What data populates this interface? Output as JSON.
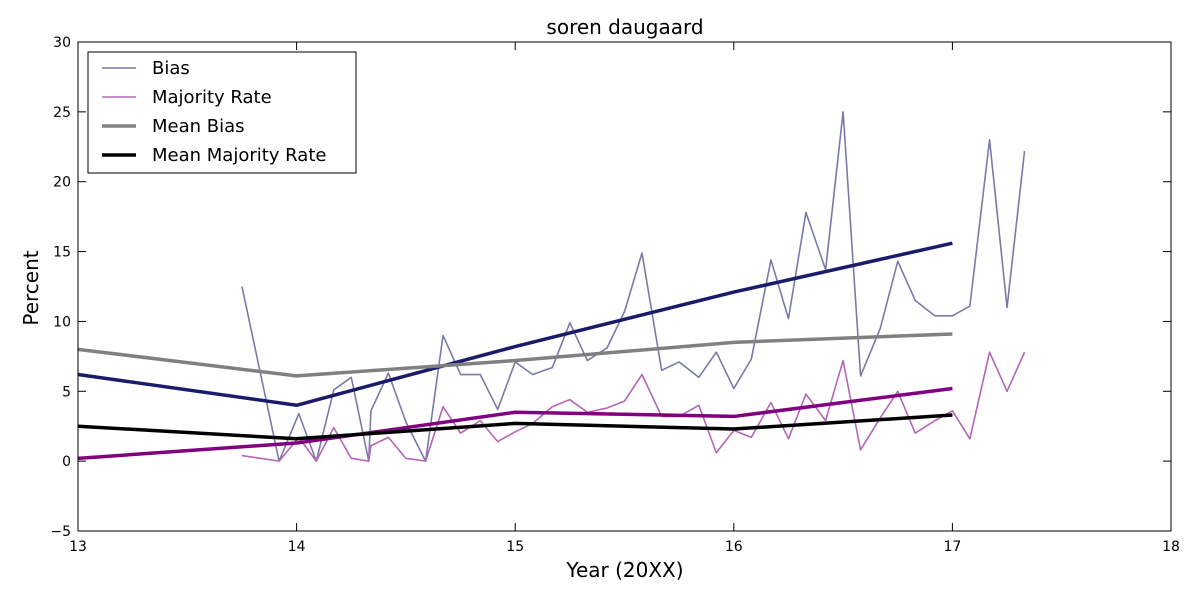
{
  "chart_data": {
    "type": "line",
    "title": "soren daugaard",
    "xlabel": "Year (20XX)",
    "ylabel": "Percent",
    "xlim": [
      13,
      18
    ],
    "ylim": [
      -5,
      30
    ],
    "xticks": [
      13,
      14,
      15,
      16,
      17,
      18
    ],
    "yticks": [
      -5,
      0,
      5,
      10,
      15,
      20,
      25,
      30
    ],
    "grid": false,
    "legend_position": "top-left",
    "series": [
      {
        "name": "Bias",
        "color": "#7a7aaa",
        "width": 1.6,
        "x": [
          13.75,
          13.92,
          14.01,
          14.09,
          14.17,
          14.25,
          14.33,
          14.34,
          14.42,
          14.5,
          14.59,
          14.67,
          14.75,
          14.84,
          14.92,
          15.0,
          15.08,
          15.17,
          15.25,
          15.33,
          15.42,
          15.5,
          15.58,
          15.67,
          15.75,
          15.84,
          15.92,
          16.0,
          16.08,
          16.17,
          16.25,
          16.33,
          16.42,
          16.5,
          16.58,
          16.67,
          16.75,
          16.83,
          16.92,
          17.0,
          17.08,
          17.17,
          17.25,
          17.33
        ],
        "y": [
          12.5,
          0.0,
          3.4,
          0.0,
          5.1,
          6.0,
          0.0,
          3.6,
          6.3,
          2.8,
          0.0,
          9.0,
          6.2,
          6.2,
          3.7,
          7.1,
          6.2,
          6.7,
          9.9,
          7.2,
          8.1,
          10.7,
          14.9,
          6.5,
          7.1,
          6.0,
          7.8,
          5.2,
          7.3,
          14.4,
          10.2,
          17.8,
          13.7,
          25.0,
          6.1,
          9.5,
          14.3,
          11.5,
          10.4,
          10.4,
          11.1,
          23.0,
          11.0,
          22.2
        ]
      },
      {
        "name": "Majority Rate",
        "color": "#b566b5",
        "width": 1.6,
        "x": [
          13.75,
          13.92,
          14.01,
          14.09,
          14.17,
          14.25,
          14.33,
          14.34,
          14.42,
          14.5,
          14.59,
          14.67,
          14.75,
          14.84,
          14.92,
          15.0,
          15.08,
          15.17,
          15.25,
          15.33,
          15.42,
          15.5,
          15.58,
          15.67,
          15.75,
          15.84,
          15.92,
          16.0,
          16.08,
          16.17,
          16.25,
          16.33,
          16.42,
          16.5,
          16.58,
          16.67,
          16.75,
          16.83,
          16.92,
          17.0,
          17.08,
          17.17,
          17.25,
          17.33
        ],
        "y": [
          0.4,
          0.0,
          1.7,
          0.0,
          2.4,
          0.2,
          0.0,
          1.1,
          1.7,
          0.2,
          0.0,
          3.9,
          2.0,
          2.9,
          1.4,
          2.1,
          2.7,
          3.9,
          4.4,
          3.5,
          3.8,
          4.3,
          6.2,
          3.2,
          3.2,
          4.0,
          0.6,
          2.2,
          1.7,
          4.2,
          1.6,
          4.8,
          2.9,
          7.2,
          0.8,
          3.1,
          5.0,
          2.0,
          2.9,
          3.6,
          1.6,
          7.8,
          5.0,
          7.8
        ]
      },
      {
        "name": "",
        "color": "#1b1b6b",
        "width": 3.5,
        "x": [
          13,
          14,
          15,
          16,
          17
        ],
        "y": [
          6.2,
          4.0,
          8.2,
          12.1,
          15.6
        ]
      },
      {
        "name": "",
        "color": "#800080",
        "width": 3.5,
        "x": [
          13,
          14,
          15,
          16,
          17
        ],
        "y": [
          0.2,
          1.3,
          3.5,
          3.2,
          5.2
        ]
      },
      {
        "name": "Mean Bias",
        "color": "#808080",
        "width": 3.5,
        "x": [
          13,
          14,
          15,
          16,
          17
        ],
        "y": [
          8.0,
          6.1,
          7.2,
          8.5,
          9.1
        ]
      },
      {
        "name": "Mean Majority Rate",
        "color": "#000000",
        "width": 3.5,
        "x": [
          13,
          14,
          15,
          16,
          17
        ],
        "y": [
          2.5,
          1.6,
          2.7,
          2.3,
          3.3
        ]
      }
    ],
    "legend": [
      {
        "label": "Bias",
        "color": "#7a7aaa",
        "width": 1.6
      },
      {
        "label": "Majority Rate",
        "color": "#b566b5",
        "width": 1.6
      },
      {
        "label": "Mean Bias",
        "color": "#808080",
        "width": 3.5
      },
      {
        "label": "Mean Majority Rate",
        "color": "#000000",
        "width": 3.5
      }
    ]
  }
}
